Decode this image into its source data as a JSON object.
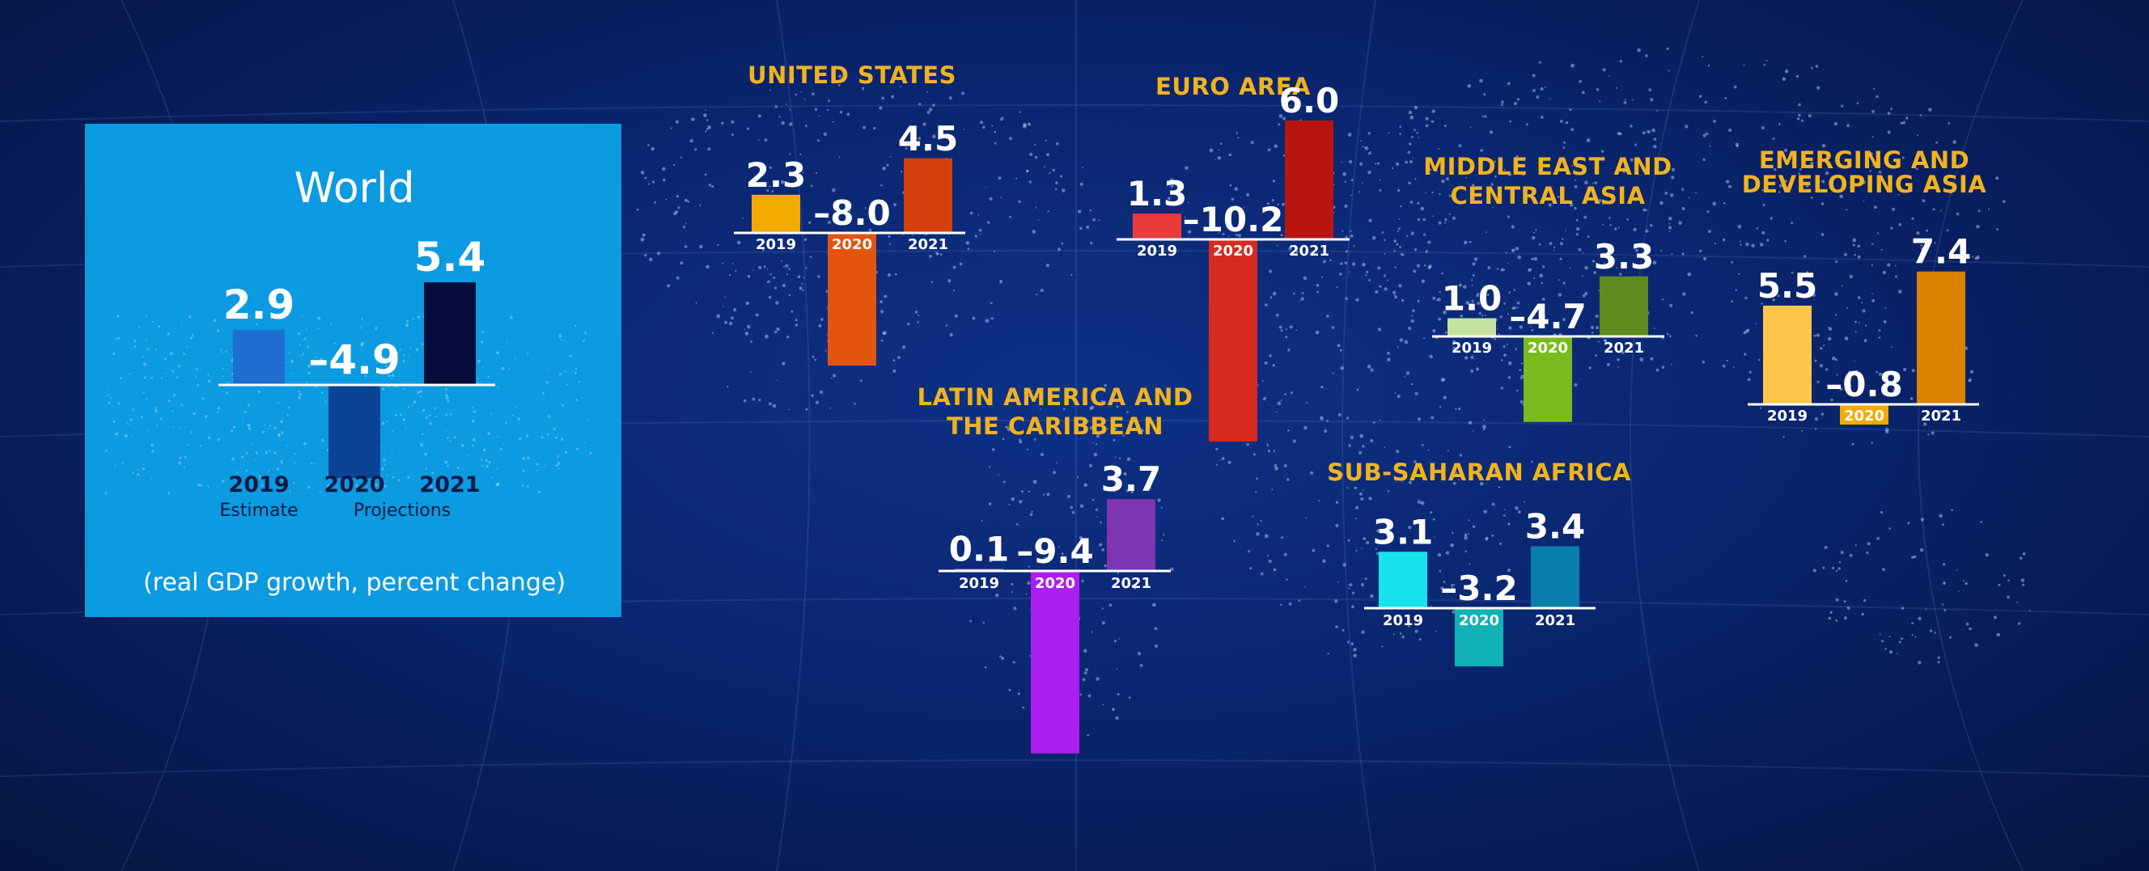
{
  "chart_data": [
    {
      "type": "bar",
      "title": "World",
      "subtitle": "(real GDP growth, percent change)",
      "categories": [
        "2019",
        "2020",
        "2021"
      ],
      "category_notes": [
        "Estimate",
        "Projections"
      ],
      "values": [
        2.9,
        -4.9,
        5.4
      ],
      "value_labels": [
        "2.9",
        "–4.9",
        "5.4"
      ],
      "colors": [
        "#1e6fcf",
        "#0a4496",
        "#050d3b"
      ]
    },
    {
      "type": "bar",
      "title": "UNITED STATES",
      "categories": [
        "2019",
        "2020",
        "2021"
      ],
      "values": [
        2.3,
        -8.0,
        4.5
      ],
      "value_labels": [
        "2.3",
        "–8.0",
        "4.5"
      ],
      "colors": [
        "#f2a900",
        "#e3540e",
        "#d4400d"
      ],
      "highlight_category": "2020"
    },
    {
      "type": "bar",
      "title": "EURO AREA",
      "categories": [
        "2019",
        "2020",
        "2021"
      ],
      "values": [
        1.3,
        -10.2,
        6.0
      ],
      "value_labels": [
        "1.3",
        "–10.2",
        "6.0"
      ],
      "colors": [
        "#ec3b3b",
        "#d8291f",
        "#b91510"
      ],
      "highlight_category": "2020"
    },
    {
      "type": "bar",
      "title": "MIDDLE EAST AND CENTRAL ASIA",
      "categories": [
        "2019",
        "2020",
        "2021"
      ],
      "values": [
        1.0,
        -4.7,
        3.3
      ],
      "value_labels": [
        "1.0",
        "–4.7",
        "3.3"
      ],
      "colors": [
        "#c4e29f",
        "#79bb1f",
        "#5f8a1d"
      ],
      "highlight_category": "2020"
    },
    {
      "type": "bar",
      "title": "EMERGING AND DEVELOPING ASIA",
      "categories": [
        "2019",
        "2020",
        "2021"
      ],
      "values": [
        5.5,
        -0.8,
        7.4
      ],
      "value_labels": [
        "5.5",
        "–0.8",
        "7.4"
      ],
      "colors": [
        "#fbc64b",
        "#f2a900",
        "#db8200"
      ],
      "highlight_category": "2020"
    },
    {
      "type": "bar",
      "title": "LATIN AMERICA AND THE CARIBBEAN",
      "categories": [
        "2019",
        "2020",
        "2021"
      ],
      "values": [
        0.1,
        -9.4,
        3.7
      ],
      "value_labels": [
        "0.1",
        "–9.4",
        "3.7"
      ],
      "colors": [
        "#cc7bf1",
        "#ab1ff0",
        "#7d35b1"
      ],
      "highlight_category": "2020"
    },
    {
      "type": "bar",
      "title": "SUB-SAHARAN AFRICA",
      "categories": [
        "2019",
        "2020",
        "2021"
      ],
      "values": [
        3.1,
        -3.2,
        3.4
      ],
      "value_labels": [
        "3.1",
        "–3.2",
        "3.4"
      ],
      "colors": [
        "#17e2f0",
        "#10b2b6",
        "#0a7fab"
      ],
      "highlight_category": "2020"
    }
  ],
  "colors": {
    "background": "#0a2670",
    "title": "#f0b21f",
    "world_panel": "#0c9ae0",
    "label": "#ffffff"
  }
}
